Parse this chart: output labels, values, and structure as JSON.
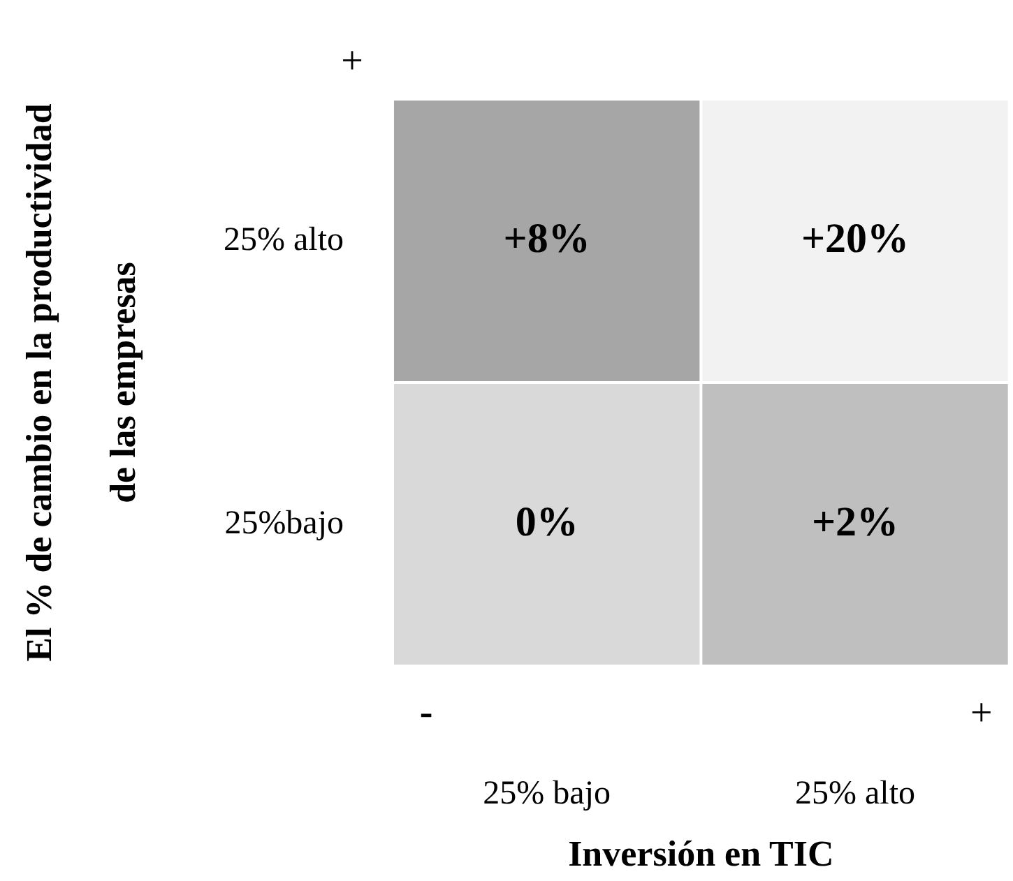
{
  "chart_data": {
    "type": "heatmap",
    "xlabel": "Inversión en TIC",
    "ylabel": "El % de cambio en la productividad\nde las empresas",
    "categories": [
      "25% bajo",
      "25% alto"
    ],
    "y_categories": [
      "25% alto",
      "25%bajo"
    ],
    "cells": [
      [
        8,
        20
      ],
      [
        0,
        2
      ]
    ],
    "cell_labels": [
      [
        "+8%",
        "+20%"
      ],
      [
        "0%",
        "+2%"
      ]
    ],
    "colors": [
      [
        "#a6a6a6",
        "#f2f2f2"
      ],
      [
        "#d9d9d9",
        "#bfbfbf"
      ]
    ],
    "annotations": [
      "+",
      "-",
      "+"
    ],
    "legend": false
  }
}
